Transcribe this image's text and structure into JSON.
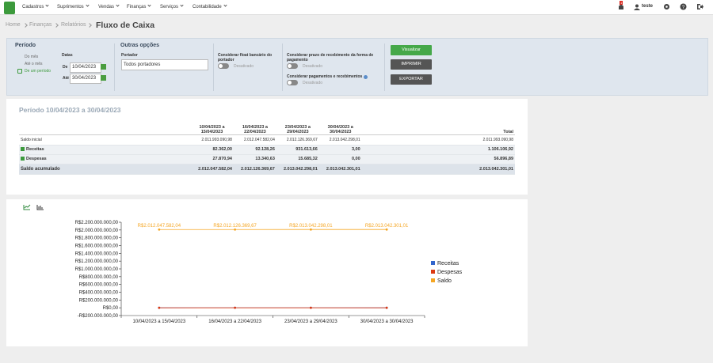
{
  "nav": {
    "menu": [
      "Cadastros",
      "Suprimentos",
      "Vendas",
      "Finanças",
      "Serviços",
      "Contabilidade"
    ],
    "badge": "1",
    "user": "teste"
  },
  "breadcrumb": {
    "items": [
      "Home",
      "Finanças",
      "Relatórios"
    ],
    "title": "Fluxo de Caixa"
  },
  "filters": {
    "period": {
      "title": "Período",
      "options": [
        "Do mês",
        "Até o mês",
        "De um período"
      ],
      "dates_label": "Datas",
      "from_label": "De",
      "from": "10/04/2023",
      "to_label": "Até",
      "to": "30/04/2023"
    },
    "other": {
      "title": "Outras opções",
      "portador_label": "Portador",
      "portador": "Todos portadores",
      "float_label": "Considerar float bancário do portador",
      "float_state": "Desativado",
      "prazo_label": "Considerar prazo de recebimento da forma de pagamento",
      "prazo_state": "Desativado",
      "pagamentos_label": "Considerar pagamentos e recebimentos",
      "pagamentos_state": "Desativado"
    },
    "buttons": [
      "Visualizar",
      "IMPRIMIR",
      "EXPORTAR"
    ]
  },
  "table": {
    "title": "Período 10/04/2023 a 30/04/2023",
    "header": [
      "10/04/2023 a 15/04/2023",
      "16/04/2023 a 22/04/2023",
      "23/04/2023 a 29/04/2023",
      "30/04/2023 a 30/04/2023",
      "Total"
    ],
    "rows": [
      [
        "Saldo inicial",
        "2.011.993.090,98",
        "2.012.047.582,04",
        "2.012.126.369,67",
        "2.013.042.298,01",
        "2.011.993.090,98"
      ],
      [
        "Receitas",
        "82.362,00",
        "92.128,26",
        "931.613,66",
        "3,00",
        "1.106.106,92"
      ],
      [
        "Despesas",
        "27.870,94",
        "13.340,63",
        "15.685,32",
        "0,00",
        "56.896,89"
      ],
      [
        "Saldo acumulado",
        "2.012.047.582,04",
        "2.012.126.369,67",
        "2.013.042.298,01",
        "2.013.042.301,01",
        "2.013.042.301,01"
      ]
    ]
  },
  "chart_data": {
    "type": "line",
    "categories": [
      "10/04/2023 a 15/04/2023",
      "16/04/2023 a 22/04/2023",
      "23/04/2023 a 29/04/2023",
      "30/04/2023 a 30/04/2023"
    ],
    "series": [
      {
        "name": "Receitas",
        "color": "#3366cc",
        "values": [
          82362,
          92128.26,
          931613.66,
          3
        ]
      },
      {
        "name": "Despesas",
        "color": "#dc3912",
        "values": [
          27870.94,
          13340.63,
          15685.32,
          0
        ]
      },
      {
        "name": "Saldo",
        "color": "#f5a623",
        "values": [
          2012047582.04,
          2012126369.67,
          2013042298.01,
          2013042301.01
        ],
        "value_labels": [
          "R$2.012.047.582,04",
          "R$2.012.126.369,67",
          "R$2.013.042.298,01",
          "R$2.013.042.301,01"
        ]
      }
    ],
    "ylim": [
      -200000000,
      2200000000
    ],
    "yticks": [
      {
        "value": 2200000000,
        "label": "R$2.200.000.000,00"
      },
      {
        "value": 2000000000,
        "label": "R$2.000.000.000,00"
      },
      {
        "value": 1800000000,
        "label": "R$1.800.000.000,00"
      },
      {
        "value": 1600000000,
        "label": "R$1.600.000.000,00"
      },
      {
        "value": 1400000000,
        "label": "R$1.400.000.000,00"
      },
      {
        "value": 1200000000,
        "label": "R$1.200.000.000,00"
      },
      {
        "value": 1000000000,
        "label": "R$1.000.000.000,00"
      },
      {
        "value": 800000000,
        "label": "R$800.000.000,00"
      },
      {
        "value": 600000000,
        "label": "R$600.000.000,00"
      },
      {
        "value": 400000000,
        "label": "R$400.000.000,00"
      },
      {
        "value": 200000000,
        "label": "R$200.000.000,00"
      },
      {
        "value": 0,
        "label": "R$0,00"
      },
      {
        "value": -200000000,
        "label": "-R$200.000.000,00"
      }
    ],
    "legend": "right"
  }
}
